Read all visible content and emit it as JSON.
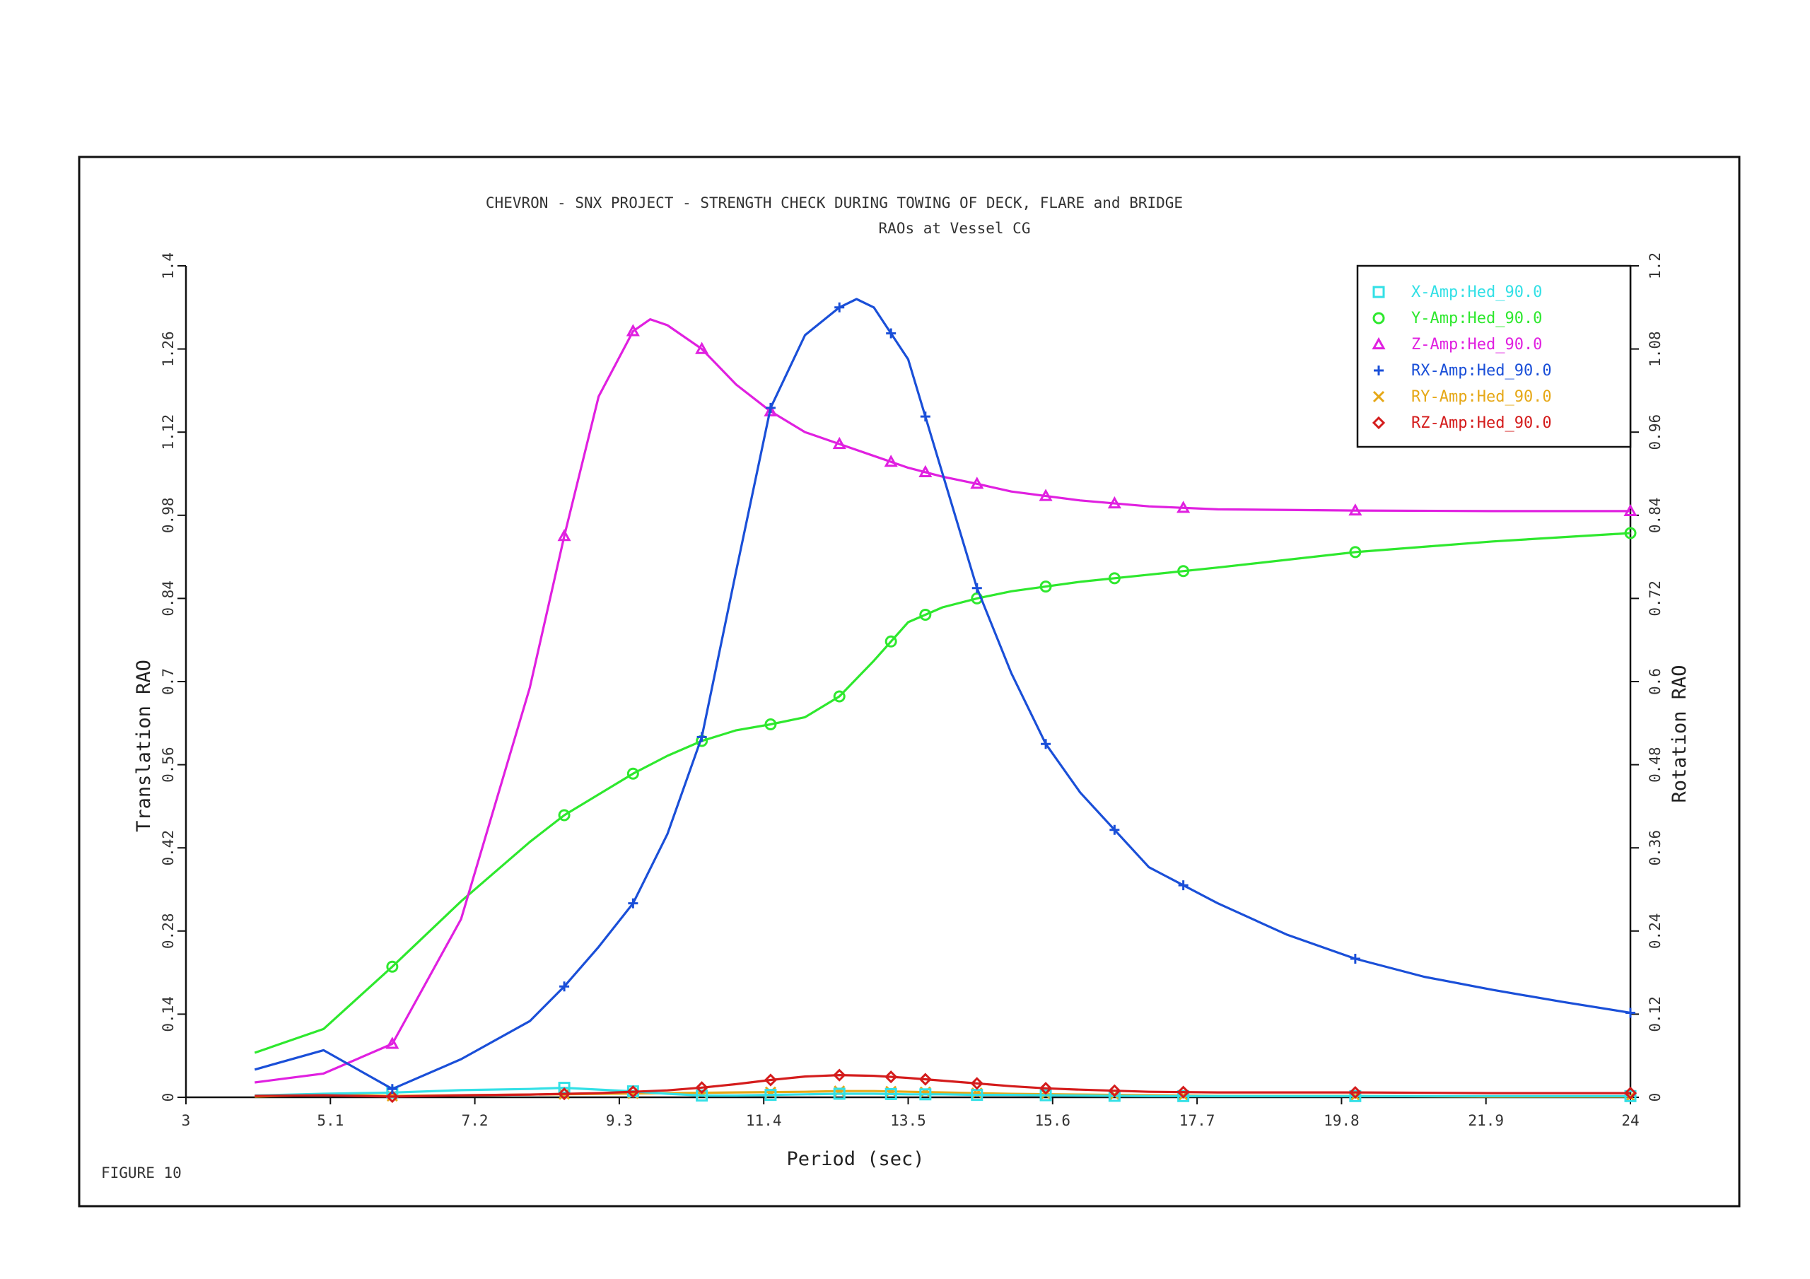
{
  "page": {
    "figure_label": "FIGURE   10"
  },
  "chart_data": {
    "type": "line",
    "title": "CHEVRON - SNX PROJECT - STRENGTH CHECK DURING TOWING OF DECK, FLARE and BRIDGE",
    "subtitle": "RAOs at Vessel CG",
    "xlabel": "Period (sec)",
    "ylabel": "Translation RAO",
    "y2label": "Rotation RAO",
    "xlim": [
      3,
      24
    ],
    "ylim": [
      0,
      1.4
    ],
    "y2lim": [
      0,
      1.2
    ],
    "xticks": [
      "3",
      "5.1",
      "7.2",
      "9.3",
      "11.4",
      "13.5",
      "15.6",
      "17.7",
      "19.8",
      "21.9",
      "24"
    ],
    "yticks": [
      "0",
      "0.14",
      "0.28",
      "0.42",
      "0.56",
      "0.7",
      "0.84",
      "0.98",
      "1.12",
      "1.26",
      "1.4"
    ],
    "y2ticks": [
      "0",
      "0.12",
      "0.24",
      "0.36",
      "0.48",
      "0.6",
      "0.72",
      "0.84",
      "0.96",
      "1.08",
      "1.2"
    ],
    "grid": false,
    "legend_position": "top-right",
    "series": [
      {
        "name": "X-Amp:Hed_90.0",
        "axis": "left",
        "color": "#33e0e6",
        "marker": "square",
        "x": [
          4,
          5,
          6,
          7,
          8,
          8.5,
          9,
          9.5,
          10,
          10.5,
          11,
          11.5,
          12,
          12.5,
          13,
          13.5,
          14,
          14.5,
          15,
          16,
          17,
          18,
          20,
          22,
          24
        ],
        "y": [
          0.003,
          0.006,
          0.008,
          0.012,
          0.014,
          0.016,
          0.013,
          0.01,
          0.006,
          0.003,
          0.003,
          0.004,
          0.005,
          0.006,
          0.006,
          0.005,
          0.005,
          0.004,
          0.004,
          0.003,
          0.002,
          0.002,
          0.002,
          0.002,
          0.002
        ],
        "markers_x": [
          6,
          8.5,
          9.5,
          10.5,
          11.5,
          12.5,
          13.25,
          13.75,
          14.5,
          15.5,
          16.5,
          17.5,
          20,
          24
        ]
      },
      {
        "name": "Y-Amp:Hed_90.0",
        "axis": "left",
        "color": "#2ee82e",
        "marker": "circle",
        "x": [
          4,
          5,
          6,
          7,
          8,
          8.5,
          9,
          9.5,
          10,
          10.5,
          11,
          11.5,
          12,
          12.5,
          13,
          13.5,
          14,
          14.5,
          15,
          16,
          17,
          18,
          20,
          22,
          24
        ],
        "y": [
          0.075,
          0.115,
          0.22,
          0.33,
          0.43,
          0.475,
          0.51,
          0.545,
          0.575,
          0.6,
          0.618,
          0.628,
          0.64,
          0.675,
          0.735,
          0.8,
          0.825,
          0.84,
          0.852,
          0.868,
          0.88,
          0.892,
          0.918,
          0.936,
          0.95
        ],
        "markers_x": [
          6,
          8.5,
          9.5,
          10.5,
          11.5,
          12.5,
          13.25,
          13.75,
          14.5,
          15.5,
          16.5,
          17.5,
          20,
          24
        ]
      },
      {
        "name": "Z-Amp:Hed_90.0",
        "axis": "left",
        "color": "#e020e0",
        "marker": "triangle",
        "x": [
          4,
          5,
          6,
          7,
          8,
          8.5,
          9,
          9.5,
          9.75,
          10,
          10.5,
          11,
          11.5,
          12,
          12.5,
          13,
          13.5,
          14,
          14.5,
          15,
          16,
          17,
          18,
          20,
          22,
          24
        ],
        "y": [
          0.025,
          0.04,
          0.09,
          0.3,
          0.69,
          0.945,
          1.18,
          1.29,
          1.31,
          1.3,
          1.26,
          1.2,
          1.155,
          1.12,
          1.1,
          1.08,
          1.06,
          1.045,
          1.033,
          1.02,
          1.005,
          0.995,
          0.99,
          0.988,
          0.987,
          0.987
        ],
        "markers_x": [
          6,
          8.5,
          9.5,
          10.5,
          11.5,
          12.5,
          13.25,
          13.75,
          14.5,
          15.5,
          16.5,
          17.5,
          20,
          24
        ]
      },
      {
        "name": "RX-Amp:Hed_90.0",
        "axis": "right",
        "color": "#1a4fd8",
        "marker": "plus",
        "x": [
          4,
          5,
          6,
          7,
          8,
          8.5,
          9,
          9.5,
          10,
          10.5,
          11,
          11.5,
          12,
          12.5,
          12.75,
          13,
          13.5,
          14,
          14.5,
          15,
          15.5,
          16,
          17,
          18,
          19,
          20,
          21,
          22,
          23,
          24
        ],
        "y": [
          0.04,
          0.068,
          0.012,
          0.055,
          0.11,
          0.16,
          0.217,
          0.28,
          0.38,
          0.52,
          0.76,
          0.995,
          1.1,
          1.14,
          1.152,
          1.14,
          1.065,
          0.9,
          0.735,
          0.612,
          0.51,
          0.44,
          0.332,
          0.28,
          0.235,
          0.2,
          0.174,
          0.155,
          0.138,
          0.122
        ],
        "markers_x": [
          6,
          8.5,
          9.5,
          10.5,
          11.5,
          12.5,
          13.25,
          13.75,
          14.5,
          15.5,
          16.5,
          17.5,
          20,
          24
        ]
      },
      {
        "name": "RY-Amp:Hed_90.0",
        "axis": "right",
        "color": "#e6a817",
        "marker": "cross",
        "x": [
          4,
          5,
          6,
          7,
          8,
          9,
          10,
          11,
          12,
          12.5,
          13,
          13.5,
          14,
          15,
          16,
          17,
          18,
          20,
          22,
          24
        ],
        "y": [
          0.001,
          0.004,
          0.002,
          0.003,
          0.004,
          0.005,
          0.006,
          0.007,
          0.008,
          0.009,
          0.009,
          0.008,
          0.007,
          0.005,
          0.004,
          0.003,
          0.002,
          0.002,
          0.001,
          0.001
        ],
        "markers_x": [
          6,
          8.5,
          9.5,
          10.5,
          11.5,
          12.5,
          13.25,
          13.75,
          14.5,
          15.5,
          16.5,
          17.5,
          20,
          24
        ]
      },
      {
        "name": "RZ-Amp:Hed_90.0",
        "axis": "right",
        "color": "#d41c1c",
        "marker": "diamond",
        "x": [
          4,
          5,
          6,
          7,
          8,
          8.5,
          9,
          9.5,
          10,
          10.5,
          11,
          11.5,
          12,
          12.5,
          13,
          13.5,
          14,
          14.5,
          15,
          15.5,
          16,
          17,
          18,
          20,
          22,
          24
        ],
        "y": [
          0.002,
          0.003,
          0.001,
          0.003,
          0.004,
          0.005,
          0.006,
          0.008,
          0.01,
          0.014,
          0.019,
          0.025,
          0.03,
          0.032,
          0.031,
          0.028,
          0.024,
          0.02,
          0.016,
          0.013,
          0.011,
          0.008,
          0.007,
          0.007,
          0.006,
          0.006
        ],
        "markers_x": [
          6,
          8.5,
          9.5,
          10.5,
          11.5,
          12.5,
          13.25,
          13.75,
          14.5,
          15.5,
          16.5,
          17.5,
          20,
          24
        ]
      }
    ]
  }
}
